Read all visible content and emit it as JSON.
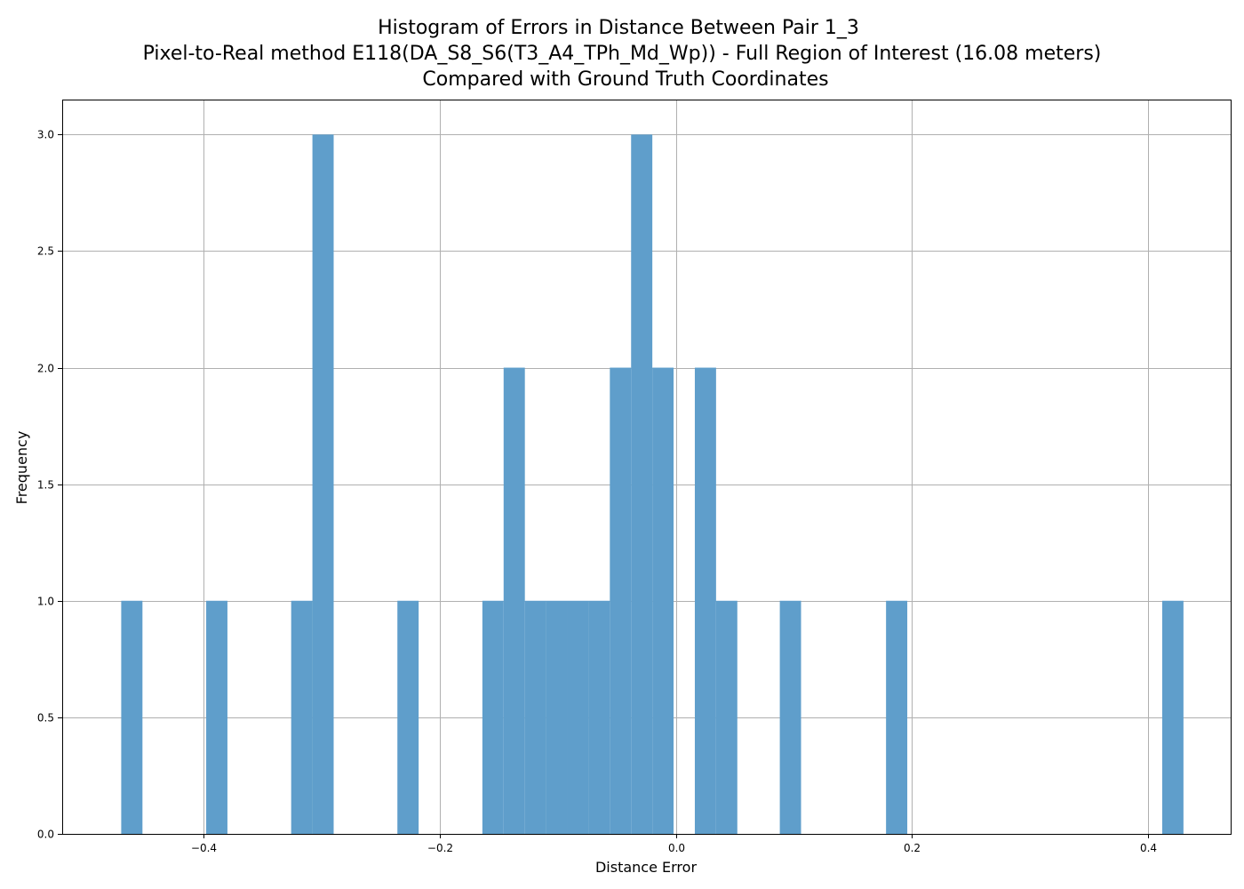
{
  "chart_data": {
    "type": "bar",
    "title": [
      "Histogram of Errors in Distance Between Pair 1_3",
      "Pixel-to-Real method E118(DA_S8_S6(T3_A4_TPh_Md_Wp)) - Full Region of Interest (16.08 meters)",
      "Compared with Ground Truth Coordinates"
    ],
    "xlabel": "Distance Error",
    "ylabel": "Frequency",
    "xlim": [
      -0.52,
      0.47
    ],
    "ylim": [
      0,
      3.15
    ],
    "xticks": [
      -0.4,
      -0.2,
      0.0,
      0.2,
      0.4
    ],
    "xtick_labels": [
      "−0.4",
      "−0.2",
      "0.0",
      "0.2",
      "0.4"
    ],
    "yticks": [
      0.0,
      0.5,
      1.0,
      1.5,
      2.0,
      2.5,
      3.0
    ],
    "ytick_labels": [
      "0.0",
      "0.5",
      "1.0",
      "1.5",
      "2.0",
      "2.5",
      "3.0"
    ],
    "grid": true,
    "bar_color": "#5f9ecb",
    "bins": [
      {
        "x0": -0.47,
        "x1": -0.452,
        "count": 1
      },
      {
        "x0": -0.398,
        "x1": -0.38,
        "count": 1
      },
      {
        "x0": -0.326,
        "x1": -0.308,
        "count": 1
      },
      {
        "x0": -0.308,
        "x1": -0.29,
        "count": 3
      },
      {
        "x0": -0.236,
        "x1": -0.218,
        "count": 1
      },
      {
        "x0": -0.164,
        "x1": -0.146,
        "count": 1
      },
      {
        "x0": -0.146,
        "x1": -0.128,
        "count": 2
      },
      {
        "x0": -0.128,
        "x1": -0.11,
        "count": 1
      },
      {
        "x0": -0.11,
        "x1": -0.092,
        "count": 1
      },
      {
        "x0": -0.092,
        "x1": -0.074,
        "count": 1
      },
      {
        "x0": -0.074,
        "x1": -0.056,
        "count": 1
      },
      {
        "x0": -0.056,
        "x1": -0.038,
        "count": 2
      },
      {
        "x0": -0.038,
        "x1": -0.02,
        "count": 3
      },
      {
        "x0": -0.02,
        "x1": -0.002,
        "count": 2
      },
      {
        "x0": 0.016,
        "x1": 0.034,
        "count": 2
      },
      {
        "x0": 0.034,
        "x1": 0.052,
        "count": 1
      },
      {
        "x0": 0.088,
        "x1": 0.106,
        "count": 1
      },
      {
        "x0": 0.178,
        "x1": 0.196,
        "count": 1
      },
      {
        "x0": 0.412,
        "x1": 0.43,
        "count": 1
      }
    ]
  }
}
